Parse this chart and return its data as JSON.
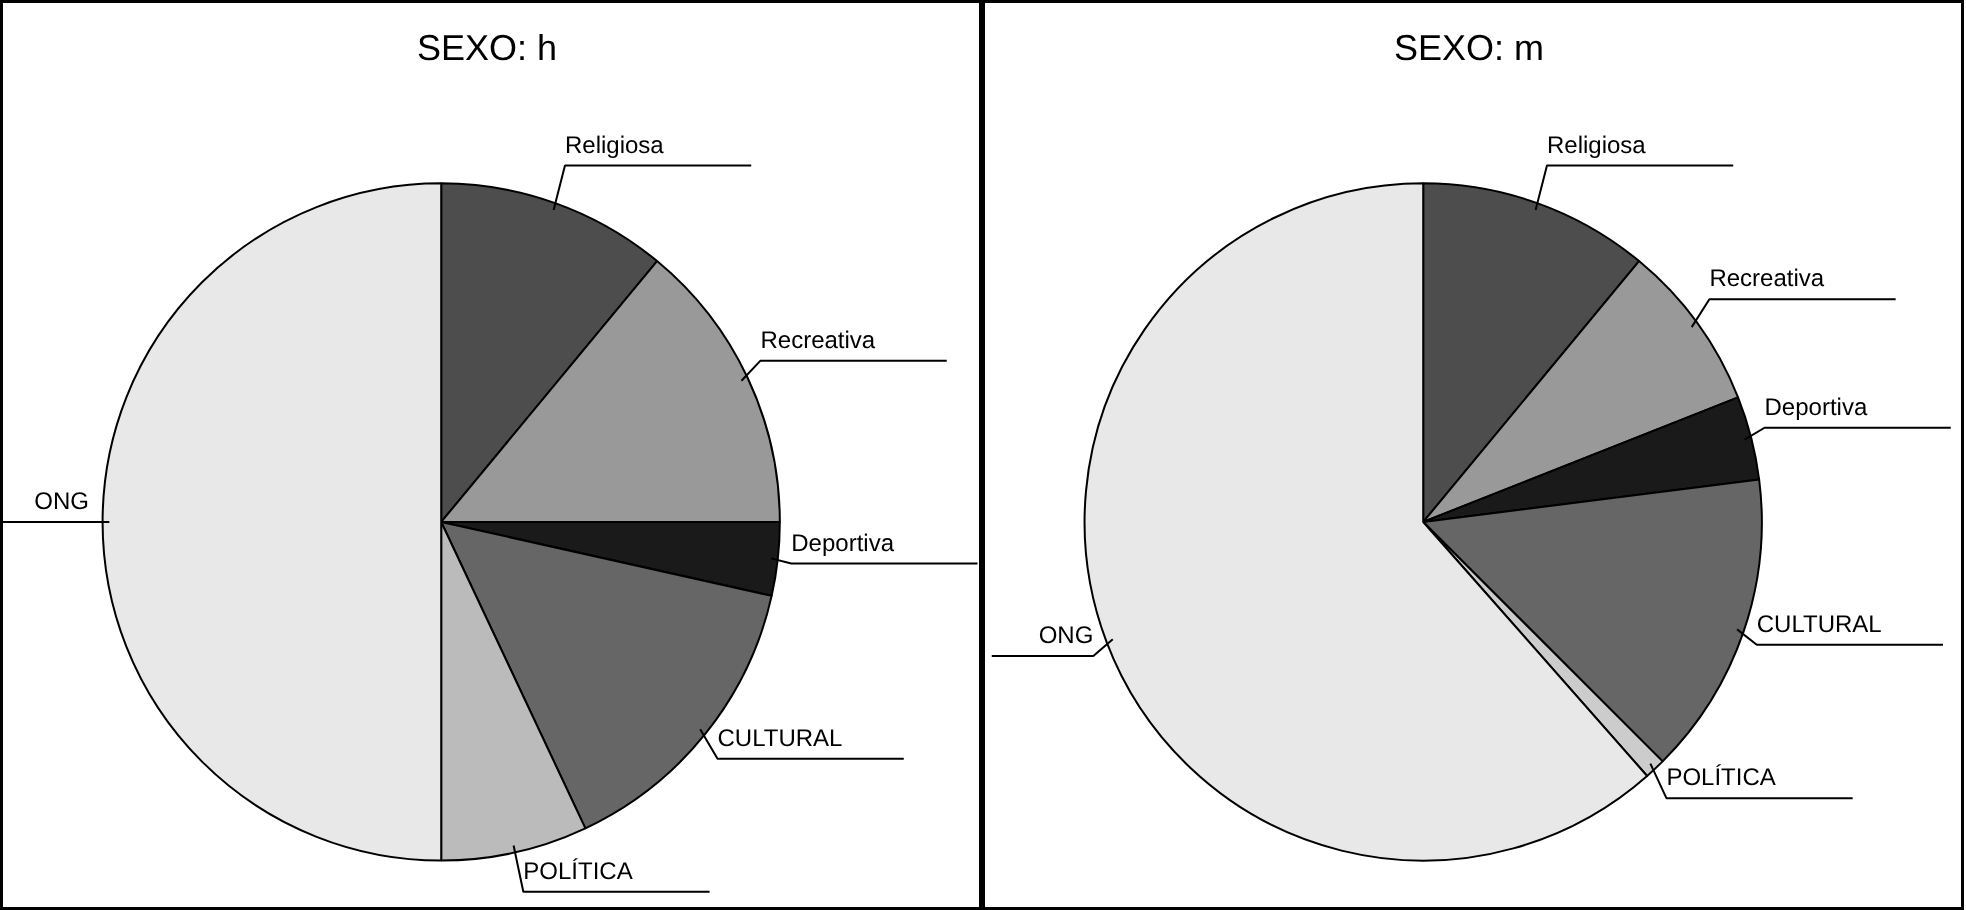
{
  "chart_data": [
    {
      "type": "pie",
      "title": "SEXO:  h",
      "categories": [
        "Religiosa",
        "Recreativa",
        "Deportiva",
        "CULTURAL",
        "POLÍTICA",
        "ONG"
      ],
      "values": [
        11,
        14,
        3.5,
        14.5,
        7,
        50
      ],
      "colors": [
        "#4d4d4d",
        "#999999",
        "#1a1a1a",
        "#666666",
        "#bbbbbb",
        "#e8e8e8"
      ]
    },
    {
      "type": "pie",
      "title": "SEXO:  m",
      "categories": [
        "Religiosa",
        "Recreativa",
        "Deportiva",
        "CULTURAL",
        "POLÍTICA",
        "ONG"
      ],
      "values": [
        11,
        8,
        4,
        14.5,
        1,
        61.5
      ],
      "colors": [
        "#4d4d4d",
        "#999999",
        "#1a1a1a",
        "#666666",
        "#cccccc",
        "#e8e8e8"
      ]
    }
  ]
}
